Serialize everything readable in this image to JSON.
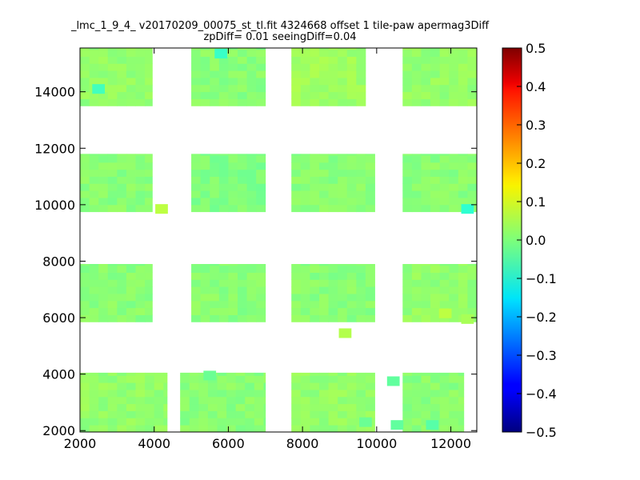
{
  "chart_data": {
    "type": "heatmap",
    "title_lines": [
      "_lmc_1_9_4_ v20170209_00075_st_tl.fit 4324668 offset 1 tile-paw apermag3Diff",
      "zpDiff= 0.01 seeingDiff=0.04"
    ],
    "xlabel": "",
    "ylabel": "",
    "xlim": [
      2000,
      12700
    ],
    "ylim": [
      1950,
      15550
    ],
    "xticks": [
      2000,
      4000,
      6000,
      8000,
      10000,
      12000
    ],
    "yticks": [
      2000,
      4000,
      6000,
      8000,
      10000,
      12000,
      14000
    ],
    "colorbar": {
      "colormap": "jet",
      "range": [
        -0.5,
        0.5
      ],
      "ticks": [
        -0.5,
        -0.4,
        -0.3,
        -0.2,
        -0.1,
        0.0,
        0.1,
        0.2,
        0.3,
        0.4,
        0.5
      ],
      "tick_labels": [
        "−0.5",
        "−0.4",
        "−0.3",
        "−0.2",
        "−0.1",
        "0.0",
        "0.1",
        "0.2",
        "0.3",
        "0.4",
        "0.5"
      ]
    },
    "grid": false,
    "tile_regions": [
      {
        "x": [
          2000,
          3950
        ],
        "y": [
          13500,
          15550
        ],
        "value": 0.02
      },
      {
        "x": [
          5000,
          7000
        ],
        "y": [
          13500,
          15550
        ],
        "value": 0.01
      },
      {
        "x": [
          7700,
          9700
        ],
        "y": [
          13500,
          15550
        ],
        "value": 0.03
      },
      {
        "x": [
          10700,
          12700
        ],
        "y": [
          13500,
          15550
        ],
        "value": 0.02
      },
      {
        "x": [
          2000,
          3950
        ],
        "y": [
          9750,
          11800
        ],
        "value": 0.01
      },
      {
        "x": [
          5000,
          7000
        ],
        "y": [
          9750,
          11800
        ],
        "value": 0.0
      },
      {
        "x": [
          7700,
          9950
        ],
        "y": [
          9750,
          11800
        ],
        "value": 0.01
      },
      {
        "x": [
          10700,
          12700
        ],
        "y": [
          9750,
          11800
        ],
        "value": 0.01
      },
      {
        "x": [
          2000,
          3950
        ],
        "y": [
          5850,
          7900
        ],
        "value": 0.01
      },
      {
        "x": [
          5000,
          7000
        ],
        "y": [
          5850,
          7900
        ],
        "value": 0.01
      },
      {
        "x": [
          7700,
          9950
        ],
        "y": [
          5850,
          7900
        ],
        "value": 0.01
      },
      {
        "x": [
          10700,
          12700
        ],
        "y": [
          5850,
          7900
        ],
        "value": 0.02
      },
      {
        "x": [
          2000,
          4350
        ],
        "y": [
          1950,
          4050
        ],
        "value": 0.02
      },
      {
        "x": [
          4700,
          7000
        ],
        "y": [
          1950,
          4050
        ],
        "value": 0.01
      },
      {
        "x": [
          7700,
          9950
        ],
        "y": [
          1950,
          4050
        ],
        "value": 0.02
      },
      {
        "x": [
          10700,
          12350
        ],
        "y": [
          1950,
          4050
        ],
        "value": 0.01
      }
    ],
    "outlier_cells": [
      {
        "x": 2500,
        "y": 14100,
        "value": -0.06
      },
      {
        "x": 5800,
        "y": 15350,
        "value": -0.07
      },
      {
        "x": 4200,
        "y": 9850,
        "value": 0.06
      },
      {
        "x": 12450,
        "y": 9850,
        "value": -0.08
      },
      {
        "x": 9150,
        "y": 5450,
        "value": 0.05
      },
      {
        "x": 10450,
        "y": 3750,
        "value": -0.03
      },
      {
        "x": 10550,
        "y": 2200,
        "value": -0.03
      },
      {
        "x": 11500,
        "y": 2200,
        "value": -0.04
      },
      {
        "x": 11850,
        "y": 6150,
        "value": 0.06
      },
      {
        "x": 12450,
        "y": 5950,
        "value": 0.04
      },
      {
        "x": 5500,
        "y": 3950,
        "value": -0.02
      },
      {
        "x": 9700,
        "y": 2300,
        "value": -0.02
      }
    ]
  }
}
